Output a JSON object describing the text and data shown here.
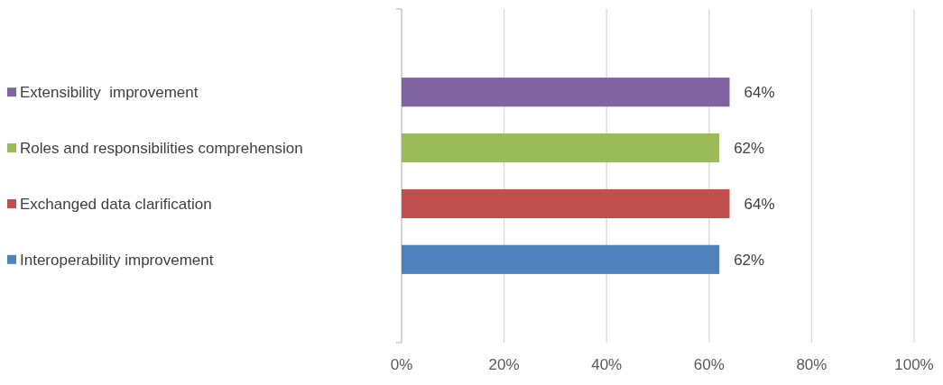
{
  "chart_data": {
    "type": "bar",
    "orientation": "horizontal",
    "categories": [
      "Extensibility  improvement",
      "Roles and responsibilities comprehension",
      "Exchanged data clarification",
      "Interoperability improvement"
    ],
    "values": [
      64,
      62,
      64,
      62
    ],
    "colors": [
      "#8064a2",
      "#9bbb59",
      "#c0504d",
      "#4f81bd"
    ],
    "value_labels": [
      "64%",
      "62%",
      "64%",
      "62%"
    ],
    "xlim": [
      0,
      100
    ],
    "xticks": [
      {
        "value": 0,
        "label": "0%"
      },
      {
        "value": 20,
        "label": "20%"
      },
      {
        "value": 40,
        "label": "40%"
      },
      {
        "value": 60,
        "label": "60%"
      },
      {
        "value": 80,
        "label": "80%"
      },
      {
        "value": 100,
        "label": "100%"
      }
    ],
    "grid": "x"
  }
}
